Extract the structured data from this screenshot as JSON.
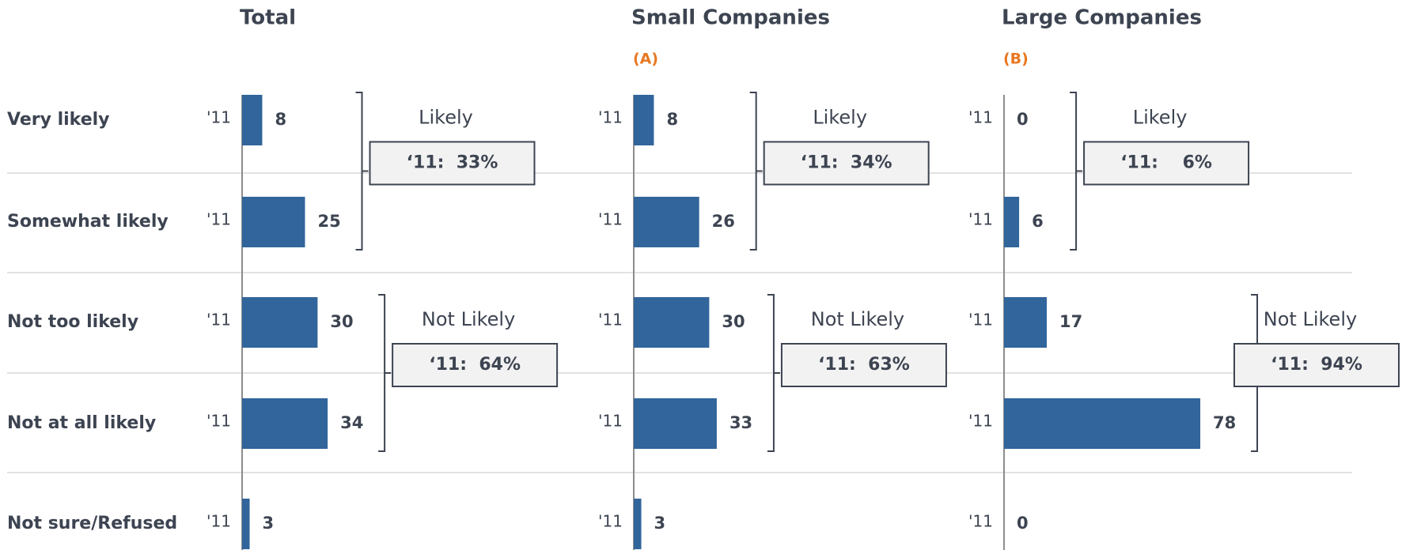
{
  "chart_data": [
    {
      "type": "bar",
      "title": "Total",
      "categories": [
        "Very likely",
        "Somewhat likely",
        "Not too likely",
        "Not at all likely",
        "Not sure/Refused"
      ],
      "period": "'11",
      "values": [
        8,
        25,
        30,
        34,
        3
      ],
      "color": "#31659b",
      "xlim": [
        0,
        100
      ],
      "groups": [
        {
          "name": "Likely",
          "label": "‘11:  33%",
          "value": 33
        },
        {
          "name": "Not Likely",
          "label": "‘11:  64%",
          "value": 64
        }
      ]
    },
    {
      "type": "bar",
      "title": "Small Companies",
      "subtitle": "(A)",
      "period": "'11",
      "values": [
        8,
        26,
        30,
        33,
        3
      ],
      "color": "#31659b",
      "xlim": [
        0,
        100
      ],
      "groups": [
        {
          "name": "Likely",
          "label": "‘11:  34%",
          "value": 34
        },
        {
          "name": "Not Likely",
          "label": "‘11:  63%",
          "value": 63
        }
      ]
    },
    {
      "type": "bar",
      "title": "Large Companies",
      "subtitle": "(B)",
      "period": "'11",
      "values": [
        0,
        6,
        17,
        78,
        0
      ],
      "color": "#31659b",
      "xlim": [
        0,
        100
      ],
      "groups": [
        {
          "name": "Likely",
          "label": "‘11:    6%",
          "value": 6
        },
        {
          "name": "Not Likely",
          "label": "‘11:  94%",
          "value": 94
        }
      ]
    }
  ]
}
